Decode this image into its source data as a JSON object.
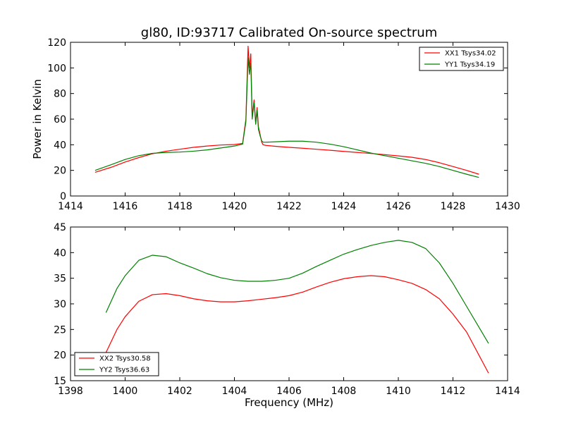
{
  "chart_data": [
    {
      "type": "line",
      "title": "gl80, ID:93717 Calibrated On-source spectrum",
      "xlabel": "",
      "ylabel": "Power in Kelvin",
      "xlim": [
        1414,
        1430
      ],
      "ylim": [
        0,
        120
      ],
      "xticks": [
        1414,
        1416,
        1418,
        1420,
        1422,
        1424,
        1426,
        1428,
        1430
      ],
      "yticks": [
        0,
        20,
        40,
        60,
        80,
        100,
        120
      ],
      "grid": false,
      "legend": "top-right",
      "series": [
        {
          "name": "XX1 Tsys34.02",
          "color": "#ff0000",
          "x": [
            1414.9,
            1415.5,
            1416.0,
            1416.5,
            1417.0,
            1417.5,
            1418.0,
            1418.5,
            1419.0,
            1419.5,
            1420.0,
            1420.3,
            1420.42,
            1420.5,
            1420.55,
            1420.6,
            1420.65,
            1420.72,
            1420.78,
            1420.83,
            1420.88,
            1420.94,
            1421.0,
            1421.05,
            1421.15,
            1421.5,
            1422.0,
            1422.5,
            1423.0,
            1423.5,
            1424.0,
            1424.5,
            1425.0,
            1425.5,
            1426.0,
            1426.5,
            1427.0,
            1427.5,
            1428.0,
            1428.5,
            1428.95
          ],
          "y": [
            18.5,
            22.5,
            26.5,
            30.0,
            33.0,
            35.0,
            36.5,
            38.0,
            39.0,
            39.8,
            40.2,
            41.0,
            60.0,
            117.0,
            100.0,
            111.0,
            62.0,
            75.0,
            57.0,
            69.0,
            54.0,
            48.0,
            42.0,
            40.0,
            39.5,
            38.8,
            38.0,
            37.3,
            36.5,
            35.7,
            34.8,
            34.0,
            33.2,
            32.3,
            31.3,
            30.2,
            28.5,
            26.0,
            23.0,
            20.0,
            17.0
          ]
        },
        {
          "name": "YY1 Tsys34.19",
          "color": "#008000",
          "x": [
            1414.9,
            1415.5,
            1416.0,
            1416.5,
            1417.0,
            1417.5,
            1418.0,
            1418.5,
            1419.0,
            1419.5,
            1420.0,
            1420.3,
            1420.42,
            1420.5,
            1420.55,
            1420.6,
            1420.65,
            1420.72,
            1420.78,
            1420.83,
            1420.88,
            1420.94,
            1421.0,
            1421.05,
            1421.15,
            1421.5,
            1422.0,
            1422.5,
            1423.0,
            1423.5,
            1424.0,
            1424.5,
            1425.0,
            1425.5,
            1426.0,
            1426.5,
            1427.0,
            1427.5,
            1428.0,
            1428.5,
            1428.95
          ],
          "y": [
            20.0,
            24.5,
            28.5,
            31.5,
            33.3,
            34.0,
            34.3,
            35.0,
            36.0,
            37.5,
            39.0,
            40.5,
            58.0,
            108.0,
            95.0,
            104.0,
            60.0,
            73.0,
            56.0,
            67.0,
            52.0,
            47.0,
            43.0,
            42.0,
            42.0,
            42.3,
            42.8,
            42.8,
            42.0,
            40.5,
            38.5,
            36.0,
            33.5,
            31.5,
            29.5,
            27.5,
            25.5,
            23.0,
            20.0,
            17.0,
            14.5
          ]
        }
      ]
    },
    {
      "type": "line",
      "title": "",
      "xlabel": "Frequency (MHz)",
      "ylabel": "",
      "xlim": [
        1398,
        1414
      ],
      "ylim": [
        15,
        45
      ],
      "xticks": [
        1398,
        1400,
        1402,
        1404,
        1406,
        1408,
        1410,
        1412,
        1414
      ],
      "yticks": [
        15,
        20,
        25,
        30,
        35,
        40,
        45
      ],
      "grid": false,
      "legend": "bottom-left",
      "series": [
        {
          "name": "XX2 Tsys30.58",
          "color": "#ff0000",
          "x": [
            1399.3,
            1399.7,
            1400.0,
            1400.5,
            1401.0,
            1401.5,
            1402.0,
            1402.5,
            1403.0,
            1403.5,
            1404.0,
            1404.5,
            1405.0,
            1405.5,
            1406.0,
            1406.5,
            1407.0,
            1407.5,
            1408.0,
            1408.5,
            1409.0,
            1409.5,
            1410.0,
            1410.5,
            1411.0,
            1411.5,
            1412.0,
            1412.5,
            1413.0,
            1413.3
          ],
          "y": [
            20.5,
            25.0,
            27.5,
            30.5,
            31.8,
            32.0,
            31.6,
            31.0,
            30.6,
            30.4,
            30.4,
            30.6,
            30.9,
            31.2,
            31.6,
            32.3,
            33.3,
            34.2,
            34.9,
            35.3,
            35.5,
            35.3,
            34.7,
            34.0,
            32.8,
            31.0,
            28.0,
            24.5,
            19.5,
            16.5
          ]
        },
        {
          "name": "YY2 Tsys36.63",
          "color": "#008000",
          "x": [
            1399.3,
            1399.7,
            1400.0,
            1400.5,
            1401.0,
            1401.5,
            1402.0,
            1402.5,
            1403.0,
            1403.5,
            1404.0,
            1404.5,
            1405.0,
            1405.5,
            1406.0,
            1406.5,
            1407.0,
            1407.5,
            1408.0,
            1408.5,
            1409.0,
            1409.5,
            1410.0,
            1410.5,
            1411.0,
            1411.5,
            1412.0,
            1412.5,
            1413.0,
            1413.3
          ],
          "y": [
            28.3,
            33.0,
            35.5,
            38.5,
            39.5,
            39.2,
            38.0,
            37.0,
            35.9,
            35.1,
            34.6,
            34.4,
            34.4,
            34.6,
            35.0,
            36.0,
            37.3,
            38.5,
            39.7,
            40.6,
            41.4,
            42.0,
            42.4,
            42.0,
            40.8,
            38.0,
            34.0,
            29.5,
            25.0,
            22.3
          ]
        }
      ]
    }
  ]
}
